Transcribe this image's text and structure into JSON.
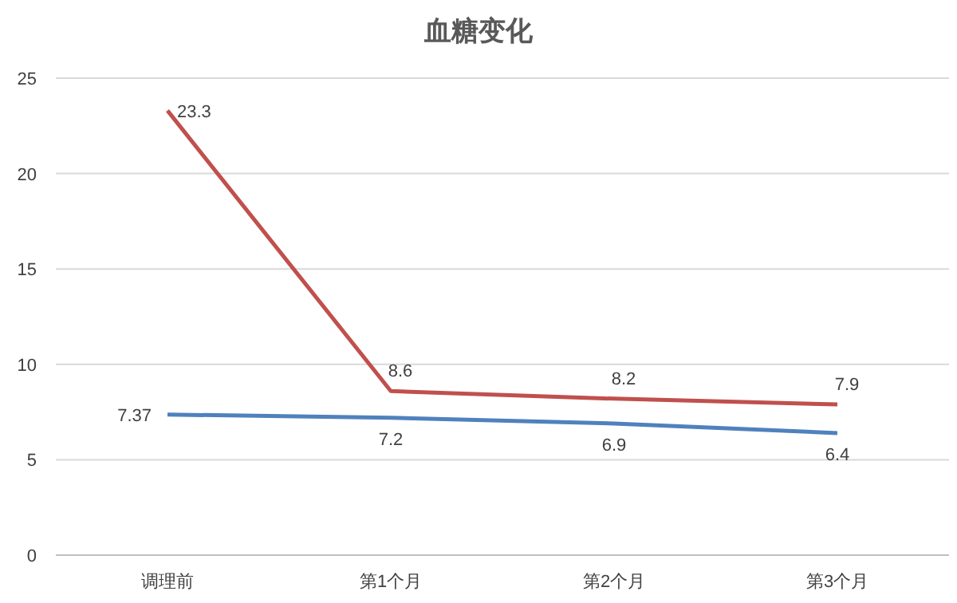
{
  "chart_data": {
    "type": "line",
    "title": "血糖变化",
    "categories": [
      "调理前",
      "第1个月",
      "第2个月",
      "第3个月"
    ],
    "series": [
      {
        "color": "#c0504d",
        "values": [
          23.3,
          8.6,
          8.2,
          7.9
        ]
      },
      {
        "color": "#4f81bd",
        "values": [
          7.37,
          7.2,
          6.9,
          6.4
        ]
      }
    ],
    "ylim": [
      0,
      25
    ],
    "yticks": [
      0,
      5,
      10,
      15,
      20,
      25
    ],
    "grid": "y",
    "data_labels": true,
    "marker": "none",
    "line_style": "solid"
  }
}
